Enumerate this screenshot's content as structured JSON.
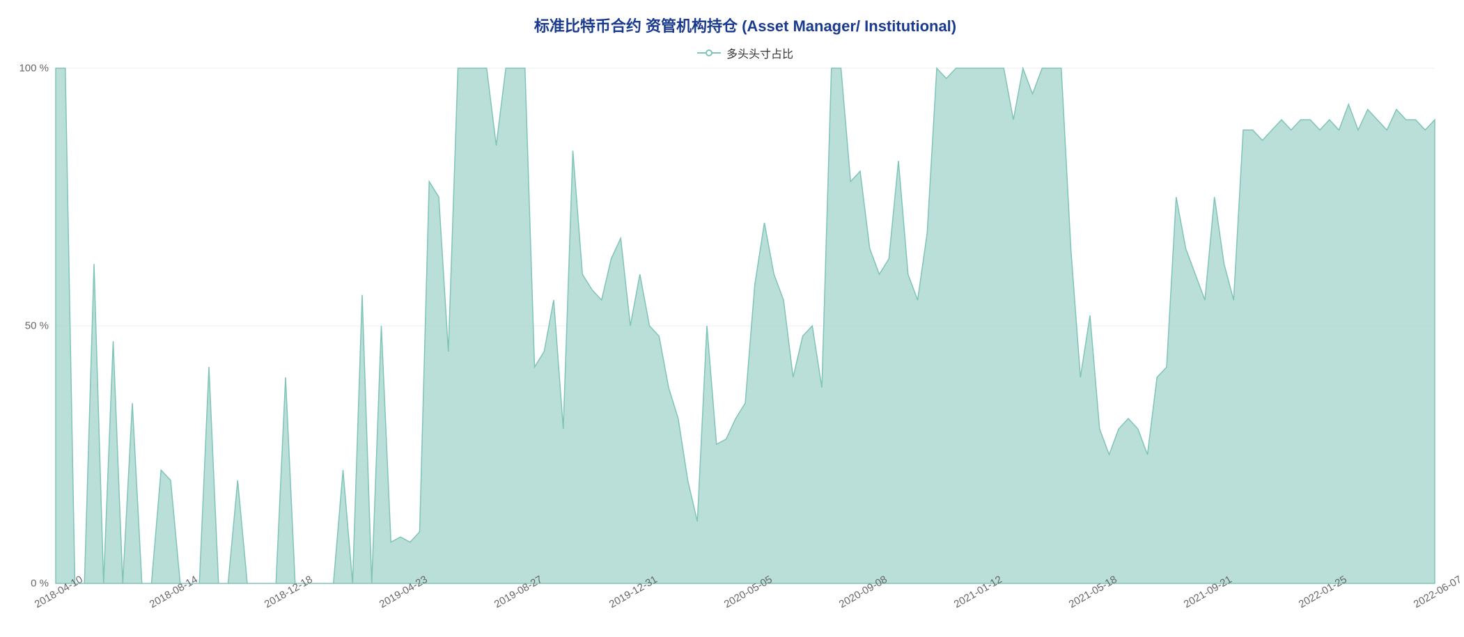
{
  "chart": {
    "type": "area",
    "title": "标准比特币合约 资管机构持仓 (Asset Manager/ Institutional)",
    "title_color": "#1a3a8f",
    "title_fontsize": 22,
    "legend": {
      "label": "多头头寸占比",
      "color": "#7fc4b8",
      "text_color": "#333333",
      "fontsize": 16
    },
    "background_color": "#ffffff",
    "grid_color": "#e8e8e8",
    "axis_text_color": "#666666",
    "series_fill": "#a3d4cb",
    "series_fill_opacity": 0.75,
    "series_stroke": "#7fc4b8",
    "series_stroke_width": 1.5,
    "y": {
      "min": 0,
      "max": 100,
      "unit": "%",
      "ticks": [
        0,
        50,
        100
      ],
      "tick_labels": [
        "0 %",
        "50 %",
        "100 %"
      ]
    },
    "x": {
      "ticks": [
        "2018-04-10",
        "2018-08-14",
        "2018-12-18",
        "2019-04-23",
        "2019-08-27",
        "2019-12-31",
        "2020-05-05",
        "2020-09-08",
        "2021-01-12",
        "2021-05-18",
        "2021-09-21",
        "2022-01-25",
        "2022-06-07"
      ]
    },
    "values": [
      100,
      100,
      0,
      0,
      62,
      0,
      47,
      0,
      35,
      0,
      0,
      22,
      20,
      0,
      0,
      0,
      42,
      0,
      0,
      20,
      0,
      0,
      0,
      0,
      40,
      0,
      0,
      0,
      0,
      0,
      22,
      0,
      56,
      0,
      50,
      8,
      9,
      8,
      10,
      78,
      75,
      45,
      100,
      100,
      100,
      100,
      85,
      100,
      100,
      100,
      42,
      45,
      55,
      30,
      84,
      60,
      57,
      55,
      63,
      67,
      50,
      60,
      50,
      48,
      38,
      32,
      20,
      12,
      50,
      27,
      28,
      32,
      35,
      58,
      70,
      60,
      55,
      40,
      48,
      50,
      38,
      100,
      100,
      78,
      80,
      65,
      60,
      63,
      82,
      60,
      55,
      68,
      100,
      98,
      100,
      100,
      100,
      100,
      100,
      100,
      90,
      100,
      95,
      100,
      100,
      100,
      65,
      40,
      52,
      30,
      25,
      30,
      32,
      30,
      25,
      40,
      42,
      75,
      65,
      60,
      55,
      75,
      62,
      55,
      88,
      88,
      86,
      88,
      90,
      88,
      90,
      90,
      88,
      90,
      88,
      93,
      88,
      92,
      90,
      88,
      92,
      90,
      90,
      88,
      90
    ]
  }
}
